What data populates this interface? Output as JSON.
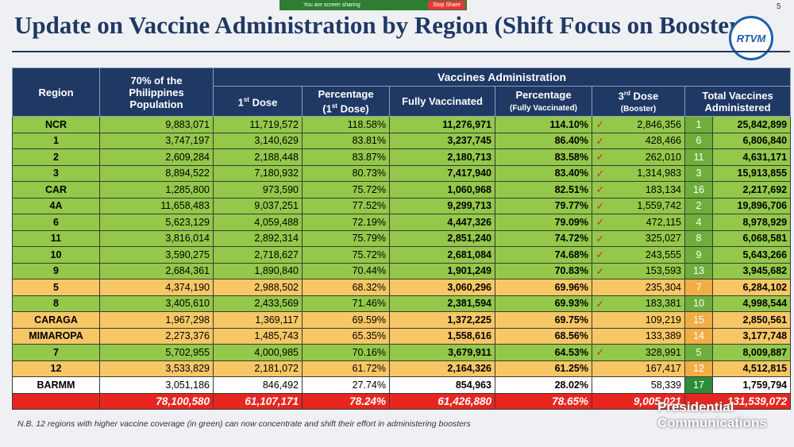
{
  "share_bar": {
    "status": "You are screen sharing",
    "stop": "Stop Share"
  },
  "slide_number": "5",
  "title": "Update on Vaccine Administration by Region (Shift Focus on Booster",
  "logo": "RTVM",
  "table": {
    "headers": {
      "region": "Region",
      "population": "70% of the Philippines Population",
      "group": "Vaccines Administration",
      "dose1": {
        "num": "1",
        "sup": "st",
        "rest": " Dose"
      },
      "pct1": {
        "main": "Percentage",
        "pre": "(1",
        "sup": "st",
        "post": " Dose)"
      },
      "fully": "Fully Vaccinated",
      "pct_fully": {
        "main": "Percentage",
        "sub": "(Fully Vaccinated)"
      },
      "booster": {
        "num": "3",
        "sup": "rd",
        "rest": " Dose",
        "sub": "(Booster)"
      },
      "total": "Total Vaccines Administered"
    },
    "check_mark": "✓",
    "rows": [
      {
        "cells": [
          "NCR",
          "9,883,071",
          "11,719,572",
          "118.58%",
          "11,276,971",
          "114.10%",
          "2,846,356",
          "1",
          "25,842,899"
        ],
        "check": true,
        "color": "#93c84a",
        "rank_color": "#6fae3a"
      },
      {
        "cells": [
          "1",
          "3,747,197",
          "3,140,629",
          "83.81%",
          "3,237,745",
          "86.40%",
          "428,466",
          "6",
          "6,806,840"
        ],
        "check": true,
        "color": "#93c84a",
        "rank_color": "#6fae3a"
      },
      {
        "cells": [
          "2",
          "2,609,284",
          "2,188,448",
          "83.87%",
          "2,180,713",
          "83.58%",
          "262,010",
          "11",
          "4,631,171"
        ],
        "check": true,
        "color": "#93c84a",
        "rank_color": "#6fae3a"
      },
      {
        "cells": [
          "3",
          "8,894,522",
          "7,180,932",
          "80.73%",
          "7,417,940",
          "83.40%",
          "1,314,983",
          "3",
          "15,913,855"
        ],
        "check": true,
        "color": "#93c84a",
        "rank_color": "#6fae3a"
      },
      {
        "cells": [
          "CAR",
          "1,285,800",
          "973,590",
          "75.72%",
          "1,060,968",
          "82.51%",
          "183,134",
          "16",
          "2,217,692"
        ],
        "check": true,
        "color": "#93c84a",
        "rank_color": "#6fae3a"
      },
      {
        "cells": [
          "4A",
          "11,658,483",
          "9,037,251",
          "77.52%",
          "9,299,713",
          "79.77%",
          "1,559,742",
          "2",
          "19,896,706"
        ],
        "check": true,
        "color": "#93c84a",
        "rank_color": "#6fae3a"
      },
      {
        "cells": [
          "6",
          "5,623,129",
          "4,059,488",
          "72.19%",
          "4,447,326",
          "79.09%",
          "472,115",
          "4",
          "8,978,929"
        ],
        "check": true,
        "color": "#93c84a",
        "rank_color": "#6fae3a"
      },
      {
        "cells": [
          "11",
          "3,816,014",
          "2,892,314",
          "75.79%",
          "2,851,240",
          "74.72%",
          "325,027",
          "8",
          "6,068,581"
        ],
        "check": true,
        "color": "#93c84a",
        "rank_color": "#6fae3a"
      },
      {
        "cells": [
          "10",
          "3,590,275",
          "2,718,627",
          "75.72%",
          "2,681,084",
          "74.68%",
          "243,555",
          "9",
          "5,643,266"
        ],
        "check": true,
        "color": "#93c84a",
        "rank_color": "#6fae3a"
      },
      {
        "cells": [
          "9",
          "2,684,361",
          "1,890,840",
          "70.44%",
          "1,901,249",
          "70.83%",
          "153,593",
          "13",
          "3,945,682"
        ],
        "check": true,
        "color": "#93c84a",
        "rank_color": "#6fae3a"
      },
      {
        "cells": [
          "5",
          "4,374,190",
          "2,988,502",
          "68.32%",
          "3,060,296",
          "69.96%",
          "235,304",
          "7",
          "6,284,102"
        ],
        "check": false,
        "color": "#f7c766",
        "rank_color": "#f2ad45"
      },
      {
        "cells": [
          "8",
          "3,405,610",
          "2,433,569",
          "71.46%",
          "2,381,594",
          "69.93%",
          "183,381",
          "10",
          "4,998,544"
        ],
        "check": true,
        "color": "#93c84a",
        "rank_color": "#6fae3a"
      },
      {
        "cells": [
          "CARAGA",
          "1,967,298",
          "1,369,117",
          "69.59%",
          "1,372,225",
          "69.75%",
          "109,219",
          "15",
          "2,850,561"
        ],
        "check": false,
        "color": "#f7c766",
        "rank_color": "#f2ad45"
      },
      {
        "cells": [
          "MIMAROPA",
          "2,273,376",
          "1,485,743",
          "65.35%",
          "1,558,616",
          "68.56%",
          "133,389",
          "14",
          "3,177,748"
        ],
        "check": false,
        "color": "#f7c766",
        "rank_color": "#f2ad45"
      },
      {
        "cells": [
          "7",
          "5,702,955",
          "4,000,985",
          "70.16%",
          "3,679,911",
          "64.53%",
          "328,991",
          "5",
          "8,009,887"
        ],
        "check": true,
        "color": "#93c84a",
        "rank_color": "#6fae3a"
      },
      {
        "cells": [
          "12",
          "3,533,829",
          "2,181,072",
          "61.72%",
          "2,164,326",
          "61.25%",
          "167,417",
          "12",
          "4,512,815"
        ],
        "check": false,
        "color": "#f7c766",
        "rank_color": "#f2ad45"
      },
      {
        "cells": [
          "BARMM",
          "3,051,186",
          "846,492",
          "27.74%",
          "854,963",
          "28.02%",
          "58,339",
          "17",
          "1,759,794"
        ],
        "check": false,
        "color": "#ffffff",
        "rank_color": "#2e8b3a"
      }
    ],
    "total": [
      "78,100,580",
      "61,107,171",
      "78.24%",
      "61,426,880",
      "78.65%",
      "9,005,021",
      "131,539,072"
    ]
  },
  "footnote": "N.B. 12 regions with higher vaccine coverage (in green) can now concentrate and shift their effort in administering boosters",
  "watermark": [
    "Presidential",
    "Communications"
  ]
}
